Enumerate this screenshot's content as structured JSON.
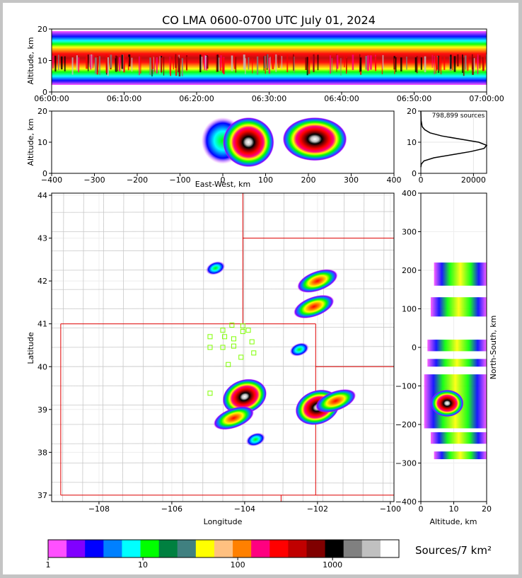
{
  "title": "CO LMA 0600-0700 UTC July 01, 2024",
  "colorbar": {
    "label": "Sources/7 km²",
    "tick_labels": [
      "1",
      "10",
      "100",
      "1000"
    ],
    "colors": [
      "#ff50ff",
      "#8000ff",
      "#0000ff",
      "#0080ff",
      "#00ffff",
      "#00ff00",
      "#008040",
      "#408080",
      "#ffff00",
      "#ffc080",
      "#ff8000",
      "#ff0080",
      "#ff0000",
      "#c00000",
      "#800000",
      "#000000",
      "#808080",
      "#c0c0c0",
      "#ffffff"
    ]
  },
  "chart_data": [
    {
      "name": "time-altitude",
      "type": "heatmap",
      "ylabel": "Altitude, km",
      "xlabel": "",
      "x_tick_labels": [
        "06:00:00",
        "06:10:00",
        "06:20:00",
        "06:30:00",
        "06:40:00",
        "06:50:00",
        "07:00:00"
      ],
      "y_tick_labels": [
        "0",
        "10",
        "20"
      ],
      "xlim": [
        "06:00:00",
        "07:00:00"
      ],
      "ylim": [
        0,
        20
      ],
      "core_altitude_km": [
        6,
        12
      ]
    },
    {
      "name": "east-west-altitude",
      "type": "heatmap",
      "xlabel": "East-West, km",
      "ylabel": "Altitude, km",
      "x_tick_labels": [
        "−400",
        "−300",
        "−200",
        "−100",
        "0",
        "100",
        "200",
        "300",
        "400"
      ],
      "y_tick_labels": [
        "0",
        "10",
        "20"
      ],
      "xlim": [
        -400,
        400
      ],
      "ylim": [
        0,
        20
      ],
      "clusters_km": [
        {
          "x": [
            -50,
            50
          ],
          "alt": [
            3,
            18
          ]
        },
        {
          "x": [
            0,
            120
          ],
          "alt": [
            2,
            18
          ],
          "peak": true
        },
        {
          "x": [
            140,
            290
          ],
          "alt": [
            4,
            18
          ],
          "peak": true
        }
      ]
    },
    {
      "name": "altitude-histogram",
      "type": "line",
      "annotation": "798,899 sources",
      "x_tick_labels": [
        "0",
        "20000"
      ],
      "y_tick_labels": [
        "0",
        "10",
        "20"
      ],
      "xlim": [
        0,
        25000
      ],
      "ylim": [
        0,
        20
      ],
      "x": [
        0,
        200,
        1200,
        5000,
        12000,
        19000,
        24000,
        25000,
        22000,
        15000,
        8000,
        3500,
        1500,
        500,
        100,
        0
      ],
      "y": [
        2,
        3,
        4,
        5,
        6,
        7,
        8,
        9,
        10,
        11,
        12,
        13,
        14,
        15,
        17,
        20
      ]
    },
    {
      "name": "plan-view",
      "type": "heatmap",
      "xlabel": "Longitude",
      "ylabel": "Latitude",
      "x_tick_labels": [
        "−108",
        "−106",
        "−104",
        "−102",
        "−100"
      ],
      "y_tick_labels": [
        "37",
        "38",
        "39",
        "40",
        "41",
        "42",
        "43",
        "44"
      ],
      "xlim": [
        -109.3,
        -99.9
      ],
      "ylim": [
        36.85,
        44.05
      ],
      "storm_cells": [
        {
          "lon": -104.0,
          "lat": 39.3,
          "intensity": "peak"
        },
        {
          "lon": -104.3,
          "lat": 38.8,
          "intensity": "medium"
        },
        {
          "lon": -102.0,
          "lat": 39.05,
          "intensity": "peak"
        },
        {
          "lon": -101.5,
          "lat": 39.2,
          "intensity": "medium"
        },
        {
          "lon": -102.1,
          "lat": 41.4,
          "intensity": "medium"
        },
        {
          "lon": -102.0,
          "lat": 42.0,
          "intensity": "medium"
        },
        {
          "lon": -104.8,
          "lat": 42.3,
          "intensity": "low"
        },
        {
          "lon": -103.7,
          "lat": 38.3,
          "intensity": "low"
        },
        {
          "lon": -102.5,
          "lat": 40.4,
          "intensity": "low"
        }
      ],
      "stations": [
        {
          "lon": -104.6,
          "lat": 40.85
        },
        {
          "lon": -104.35,
          "lat": 40.97
        },
        {
          "lon": -104.05,
          "lat": 40.95
        },
        {
          "lon": -104.05,
          "lat": 40.82
        },
        {
          "lon": -103.9,
          "lat": 40.85
        },
        {
          "lon": -104.95,
          "lat": 40.7
        },
        {
          "lon": -104.55,
          "lat": 40.7
        },
        {
          "lon": -104.3,
          "lat": 40.65
        },
        {
          "lon": -103.8,
          "lat": 40.58
        },
        {
          "lon": -104.95,
          "lat": 40.45
        },
        {
          "lon": -104.6,
          "lat": 40.45
        },
        {
          "lon": -104.3,
          "lat": 40.48
        },
        {
          "lon": -103.75,
          "lat": 40.32
        },
        {
          "lon": -104.1,
          "lat": 40.22
        },
        {
          "lon": -104.45,
          "lat": 40.05
        },
        {
          "lon": -104.95,
          "lat": 39.38
        }
      ]
    },
    {
      "name": "altitude-north-south",
      "type": "heatmap",
      "xlabel": "Altitude, km",
      "ylabel": "North-South, km",
      "x_tick_labels": [
        "0",
        "10",
        "20"
      ],
      "y_tick_labels": [
        "−400",
        "−300",
        "−200",
        "−100",
        "0",
        "100",
        "200",
        "300",
        "400"
      ],
      "xlim": [
        0,
        20
      ],
      "ylim": [
        -400,
        400
      ]
    }
  ]
}
